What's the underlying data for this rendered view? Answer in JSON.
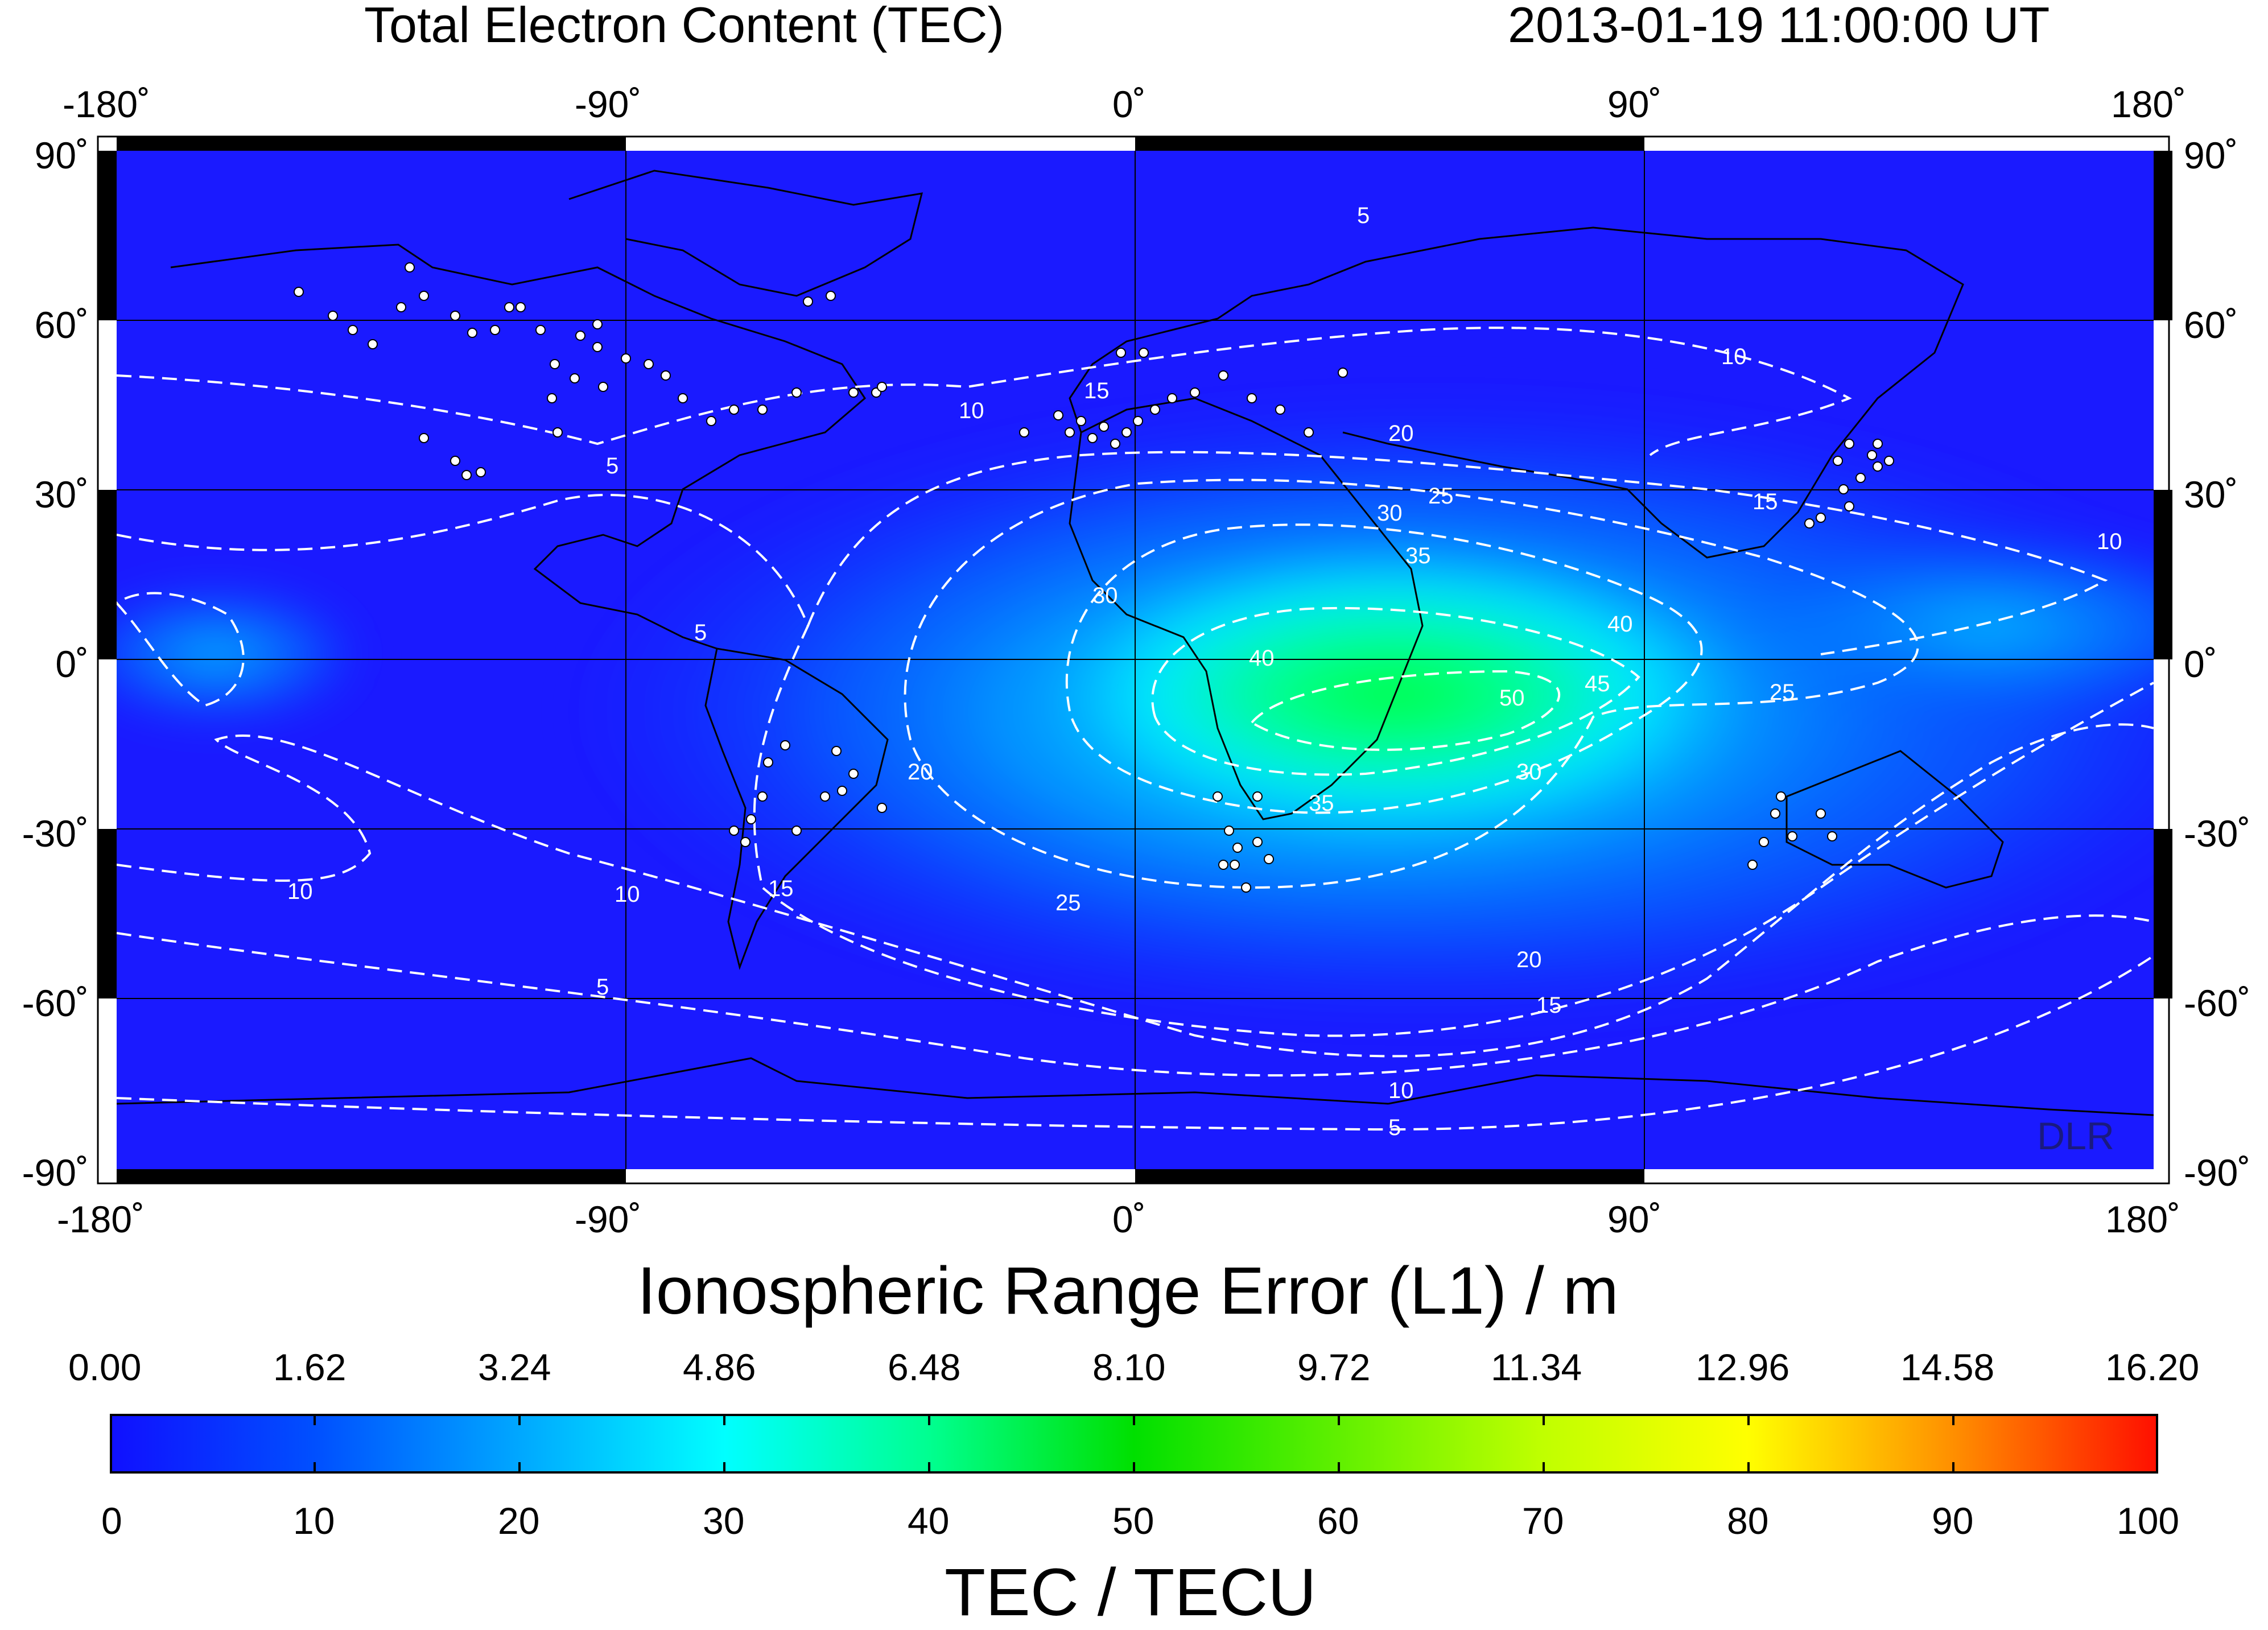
{
  "header": {
    "title": "Total Electron Content (TEC)",
    "timestamp": "2013-01-19  11:00:00 UT"
  },
  "map": {
    "lon_ticks": [
      "-180˚",
      "-90˚",
      "0˚",
      "90˚",
      "180˚"
    ],
    "lat_ticks": [
      "90˚",
      "60˚",
      "30˚",
      "0˚",
      "-30˚",
      "-60˚",
      "-90˚"
    ],
    "contour_labels": [
      "5",
      "10",
      "15",
      "20",
      "25",
      "30",
      "35",
      "40",
      "45",
      "50"
    ],
    "watermark": "DLR",
    "colors": {
      "low": "#1a1aff",
      "mid": "#00e0ff",
      "high": "#00ee00"
    }
  },
  "range_error_scale": {
    "label": "Ionospheric Range Error (L1) / m",
    "ticks": [
      "0.00",
      "1.62",
      "3.24",
      "4.86",
      "6.48",
      "8.10",
      "9.72",
      "11.34",
      "12.96",
      "14.58",
      "16.20"
    ]
  },
  "tec_scale": {
    "label": "TEC / TECU",
    "ticks": [
      "0",
      "10",
      "20",
      "30",
      "40",
      "50",
      "60",
      "70",
      "80",
      "90",
      "100"
    ],
    "colors": [
      "#1010ff",
      "#0050ff",
      "#00a8ff",
      "#00ffff",
      "#00ff90",
      "#00e000",
      "#60f000",
      "#c0ff00",
      "#ffff00",
      "#ff9000",
      "#ff1000"
    ]
  }
}
